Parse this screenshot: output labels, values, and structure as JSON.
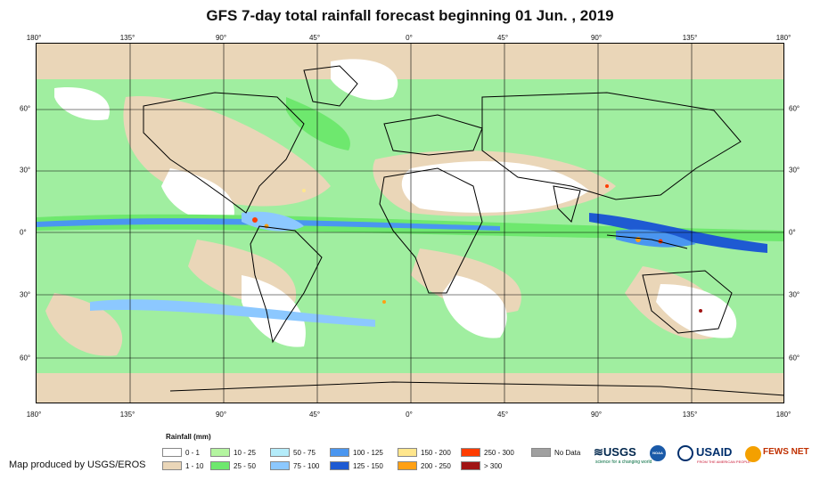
{
  "title": "GFS 7-day total rainfall forecast beginning 01 Jun. , 2019",
  "longitude_labels": [
    "180°",
    "135°",
    "90°",
    "45°",
    "0°",
    "45°",
    "90°",
    "135°",
    "180°"
  ],
  "latitude_labels_left": [
    "60°",
    "30°",
    "0°",
    "30°",
    "60°"
  ],
  "latitude_labels_right": [
    "60°",
    "30°",
    "0°",
    "30°",
    "60°"
  ],
  "legend": {
    "title": "Rainfall (mm)",
    "items": [
      {
        "label": "0 - 1",
        "color": "#ffffff"
      },
      {
        "label": "1 - 10",
        "color": "#ead6b8"
      },
      {
        "label": "10 - 25",
        "color": "#b4f5a0"
      },
      {
        "label": "25 - 50",
        "color": "#6ee86e"
      },
      {
        "label": "50 - 75",
        "color": "#b4ecfa"
      },
      {
        "label": "75 - 100",
        "color": "#8cc8ff"
      },
      {
        "label": "100 - 125",
        "color": "#4a96f0"
      },
      {
        "label": "125 - 150",
        "color": "#1e5ad2"
      },
      {
        "label": "150 - 200",
        "color": "#ffe68c"
      },
      {
        "label": "200 - 250",
        "color": "#ffa014"
      },
      {
        "label": "250 - 300",
        "color": "#ff3c00"
      },
      {
        "label": "> 300",
        "color": "#a01414"
      },
      {
        "label": "No Data",
        "color": "#a0a0a0"
      }
    ]
  },
  "credit": "Map produced by USGS/EROS",
  "logos": {
    "usgs": "≋USGS",
    "usgs_tagline": "science for a changing world",
    "noaa": "NOAA",
    "usaid": "USAID",
    "usaid_tagline": "FROM THE AMERICAN PEOPLE",
    "fewsnet": "FEWS NET"
  },
  "colors": {
    "land_outline": "#000000",
    "frame": "#000000"
  }
}
